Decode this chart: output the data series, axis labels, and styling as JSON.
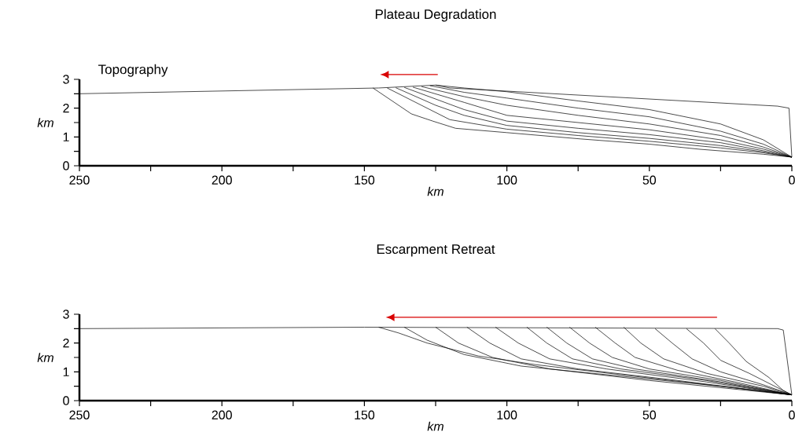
{
  "chart_data": [
    {
      "type": "line",
      "title": "Plateau Degradation",
      "xlabel": "km",
      "ylabel": "km",
      "annotations": [
        "Topography"
      ],
      "xlim": [
        250,
        0
      ],
      "ylim": [
        0,
        3
      ],
      "xticks": [
        250,
        {
          "value": 225,
          "label": null
        },
        200,
        {
          "value": 175,
          "label": null
        },
        150,
        {
          "value": 125,
          "label": null
        },
        100,
        {
          "value": 75,
          "label": null
        },
        50,
        {
          "value": 25,
          "label": null
        },
        0
      ],
      "yticks": [
        0,
        {
          "value": 0.5,
          "label": null
        },
        1,
        {
          "value": 1.5,
          "label": null
        },
        2,
        {
          "value": 2.5,
          "label": null
        },
        3
      ],
      "series": [
        {
          "color": "#000000",
          "x": [
            250,
            145,
            125,
            120,
            5,
            1,
            0
          ],
          "values": [
            2.5,
            2.7,
            2.8,
            2.7,
            2.07,
            2.0,
            0.3
          ]
        },
        {
          "color": "#000000",
          "x": [
            125,
            115,
            100,
            75,
            50,
            25,
            10,
            0
          ],
          "values": [
            2.8,
            2.7,
            2.57,
            2.25,
            1.95,
            1.45,
            0.9,
            0.3
          ]
        },
        {
          "color": "#000000",
          "x": [
            127,
            115,
            100,
            75,
            50,
            25,
            10,
            0
          ],
          "values": [
            2.78,
            2.55,
            2.35,
            2.0,
            1.7,
            1.2,
            0.75,
            0.3
          ]
        },
        {
          "color": "#000000",
          "x": [
            130,
            115,
            100,
            75,
            50,
            25,
            10,
            0
          ],
          "values": [
            2.75,
            2.4,
            2.1,
            1.75,
            1.45,
            1.05,
            0.65,
            0.3
          ]
        },
        {
          "color": "#000000",
          "x": [
            133,
            115,
            100,
            75,
            50,
            25,
            10,
            0
          ],
          "values": [
            2.73,
            2.2,
            1.75,
            1.5,
            1.25,
            0.9,
            0.58,
            0.3
          ]
        },
        {
          "color": "#000000",
          "x": [
            136,
            115,
            100,
            75,
            50,
            25,
            10,
            0
          ],
          "values": [
            2.72,
            1.95,
            1.55,
            1.3,
            1.08,
            0.8,
            0.52,
            0.3
          ]
        },
        {
          "color": "#000000",
          "x": [
            139,
            125,
            115,
            100,
            75,
            50,
            25,
            10,
            0
          ],
          "values": [
            2.71,
            2.1,
            1.75,
            1.4,
            1.15,
            0.95,
            0.7,
            0.48,
            0.3
          ]
        },
        {
          "color": "#000000",
          "x": [
            142,
            130,
            120,
            100,
            75,
            50,
            25,
            10,
            0
          ],
          "values": [
            2.7,
            2.1,
            1.6,
            1.27,
            1.05,
            0.85,
            0.62,
            0.45,
            0.3
          ]
        },
        {
          "color": "#000000",
          "x": [
            147,
            133.5,
            126,
            118,
            100,
            74,
            50,
            32,
            10,
            0
          ],
          "values": [
            2.7,
            1.8,
            1.55,
            1.3,
            1.15,
            0.93,
            0.75,
            0.57,
            0.4,
            0.3
          ]
        }
      ]
    },
    {
      "type": "line",
      "title": "Escarpment Retreat",
      "xlabel": "km",
      "ylabel": "km",
      "xlim": [
        250,
        0
      ],
      "ylim": [
        0,
        3
      ],
      "xticks": [
        250,
        {
          "value": 225,
          "label": null
        },
        200,
        {
          "value": 175,
          "label": null
        },
        150,
        {
          "value": 125,
          "label": null
        },
        100,
        {
          "value": 75,
          "label": null
        },
        50,
        {
          "value": 25,
          "label": null
        },
        0
      ],
      "yticks": [
        0,
        {
          "value": 0.5,
          "label": null
        },
        1,
        {
          "value": 1.5,
          "label": null
        },
        2,
        {
          "value": 2.5,
          "label": null
        },
        3
      ],
      "series": [
        {
          "color": "#000000",
          "x": [
            250,
            150,
            5,
            3,
            0
          ],
          "values": [
            2.5,
            2.55,
            2.5,
            2.45,
            0.2
          ]
        },
        {
          "color": "#000000",
          "x": [
            27,
            22,
            16,
            8,
            3,
            0
          ],
          "values": [
            2.5,
            2.0,
            1.36,
            0.8,
            0.35,
            0.2
          ]
        },
        {
          "color": "#000000",
          "x": [
            37,
            31,
            25,
            15,
            5,
            0
          ],
          "values": [
            2.5,
            2.0,
            1.4,
            0.95,
            0.45,
            0.2
          ]
        },
        {
          "color": "#000000",
          "x": [
            48,
            42,
            35,
            25,
            10,
            0
          ],
          "values": [
            2.5,
            2.0,
            1.45,
            1.0,
            0.55,
            0.2
          ]
        },
        {
          "color": "#000000",
          "x": [
            59,
            53,
            45,
            30,
            10,
            0
          ],
          "values": [
            2.55,
            2.0,
            1.45,
            0.95,
            0.5,
            0.2
          ]
        },
        {
          "color": "#000000",
          "x": [
            69,
            62,
            55,
            40,
            20,
            0
          ],
          "values": [
            2.55,
            2.0,
            1.5,
            1.05,
            0.65,
            0.2
          ]
        },
        {
          "color": "#000000",
          "x": [
            78,
            71,
            63,
            50,
            25,
            0
          ],
          "values": [
            2.55,
            2.0,
            1.5,
            1.1,
            0.7,
            0.2
          ]
        },
        {
          "color": "#000000",
          "x": [
            86,
            79,
            70,
            55,
            25,
            0
          ],
          "values": [
            2.55,
            2.0,
            1.45,
            1.1,
            0.65,
            0.2
          ]
        },
        {
          "color": "#000000",
          "x": [
            93,
            86,
            77,
            60,
            30,
            0
          ],
          "values": [
            2.55,
            2.0,
            1.45,
            1.1,
            0.7,
            0.2
          ]
        },
        {
          "color": "#000000",
          "x": [
            104,
            96,
            85,
            65,
            30,
            0
          ],
          "values": [
            2.55,
            2.0,
            1.45,
            1.1,
            0.65,
            0.2
          ]
        },
        {
          "color": "#000000",
          "x": [
            114,
            106,
            95,
            75,
            40,
            0
          ],
          "values": [
            2.55,
            2.0,
            1.45,
            1.1,
            0.7,
            0.2
          ]
        },
        {
          "color": "#000000",
          "x": [
            125,
            117,
            105,
            85,
            50,
            0
          ],
          "values": [
            2.55,
            2.0,
            1.5,
            1.1,
            0.7,
            0.2
          ]
        },
        {
          "color": "#000000",
          "x": [
            136,
            128,
            115,
            95,
            60,
            25,
            0
          ],
          "values": [
            2.55,
            2.1,
            1.6,
            1.2,
            0.85,
            0.5,
            0.2
          ]
        },
        {
          "color": "#000000",
          "x": [
            145,
            138,
            128,
            110,
            90,
            60,
            25,
            0
          ],
          "values": [
            2.55,
            2.35,
            2.0,
            1.55,
            1.25,
            0.9,
            0.5,
            0.2
          ]
        }
      ]
    }
  ]
}
